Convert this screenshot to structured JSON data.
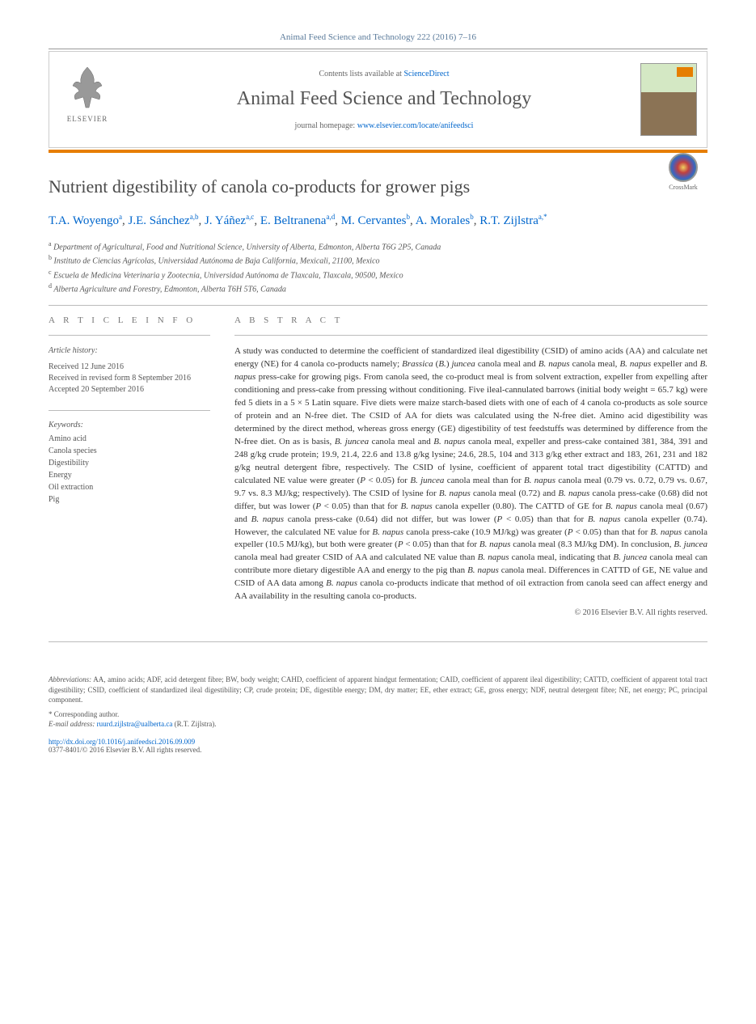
{
  "journal_ref": "Animal Feed Science and Technology 222 (2016) 7–16",
  "header": {
    "contents_prefix": "Contents lists available at ",
    "contents_link": "ScienceDirect",
    "journal_title": "Animal Feed Science and Technology",
    "homepage_prefix": "journal homepage: ",
    "homepage_link": "www.elsevier.com/locate/anifeedsci",
    "elsevier_label": "ELSEVIER"
  },
  "crossmark_label": "CrossMark",
  "title": "Nutrient digestibility of canola co-products for grower pigs",
  "authors_html": "T.A. Woyengo<sup>a</sup>, J.E. Sánchez<sup>a,b</sup>, J. Yáñez<sup>a,c</sup>, E. Beltranena<sup>a,d</sup>, M. Cervantes<sup>b</sup>, A. Morales<sup>b</sup>, R.T. Zijlstra<sup>a,*</sup>",
  "affiliations": [
    {
      "sup": "a",
      "text": "Department of Agricultural, Food and Nutritional Science, University of Alberta, Edmonton, Alberta T6G 2P5, Canada"
    },
    {
      "sup": "b",
      "text": "Instituto de Ciencias Agrícolas, Universidad Autónoma de Baja California, Mexicali, 21100, Mexico"
    },
    {
      "sup": "c",
      "text": "Escuela de Medicina Veterinaria y Zootecnia, Universidad Autónoma de Tlaxcala, Tlaxcala, 90500, Mexico"
    },
    {
      "sup": "d",
      "text": "Alberta Agriculture and Forestry, Edmonton, Alberta T6H 5T6, Canada"
    }
  ],
  "info_header": "A R T I C L E    I N F O",
  "abstract_header": "A B S T R A C T",
  "history_label": "Article history:",
  "history": {
    "received": "Received 12 June 2016",
    "revised": "Received in revised form 8 September 2016",
    "accepted": "Accepted 20 September 2016"
  },
  "keywords_label": "Keywords:",
  "keywords": [
    "Amino acid",
    "Canola species",
    "Digestibility",
    "Energy",
    "Oil extraction",
    "Pig"
  ],
  "abstract": "A study was conducted to determine the coefficient of standardized ileal digestibility (CSID) of amino acids (AA) and calculate net energy (NE) for 4 canola co-products namely; Brassica (B.) juncea canola meal and B. napus canola meal, B. napus expeller and B. napus press-cake for growing pigs. From canola seed, the co-product meal is from solvent extraction, expeller from expelling after conditioning and press-cake from pressing without conditioning. Five ileal-cannulated barrows (initial body weight = 65.7 kg) were fed 5 diets in a 5 × 5 Latin square. Five diets were maize starch-based diets with one of each of 4 canola co-products as sole source of protein and an N-free diet. The CSID of AA for diets was calculated using the N-free diet. Amino acid digestibility was determined by the direct method, whereas gross energy (GE) digestibility of test feedstuffs was determined by difference from the N-free diet. On as is basis, B. juncea canola meal and B. napus canola meal, expeller and press-cake contained 381, 384, 391 and 248 g/kg crude protein; 19.9, 21.4, 22.6 and 13.8 g/kg lysine; 24.6, 28.5, 104 and 313 g/kg ether extract and 183, 261, 231 and 182 g/kg neutral detergent fibre, respectively. The CSID of lysine, coefficient of apparent total tract digestibility (CATTD) and calculated NE value were greater (P < 0.05) for B. juncea canola meal than for B. napus canola meal (0.79 vs. 0.72, 0.79 vs. 0.67, 9.7 vs. 8.3 MJ/kg; respectively). The CSID of lysine for B. napus canola meal (0.72) and B. napus canola press-cake (0.68) did not differ, but was lower (P < 0.05) than that for B. napus canola expeller (0.80). The CATTD of GE for B. napus canola meal (0.67) and B. napus canola press-cake (0.64) did not differ, but was lower (P < 0.05) than that for B. napus canola expeller (0.74). However, the calculated NE value for B. napus canola press-cake (10.9 MJ/kg) was greater (P < 0.05) than that for B. napus canola expeller (10.5 MJ/kg), but both were greater (P < 0.05) than that for B. napus canola meal (8.3 MJ/kg DM). In conclusion, B. juncea canola meal had greater CSID of AA and calculated NE value than B. napus canola meal, indicating that B. juncea canola meal can contribute more dietary digestible AA and energy to the pig than B. napus canola meal. Differences in CATTD of GE, NE value and CSID of AA data among B. napus canola co-products indicate that method of oil extraction from canola seed can affect energy and AA availability in the resulting canola co-products.",
  "abstract_copyright": "© 2016 Elsevier B.V. All rights reserved.",
  "abbrev_label": "Abbreviations:",
  "abbrev_text": "AA, amino acids; ADF, acid detergent fibre; BW, body weight; CAHD, coefficient of apparent hindgut fermentation; CAID, coefficient of apparent ileal digestibility; CATTD, coefficient of apparent total tract digestibility; CSID, coefficient of standardized ileal digestibility; CP, crude protein; DE, digestible energy; DM, dry matter; EE, ether extract; GE, gross energy; NDF, neutral detergent fibre; NE, net energy; PC, principal component.",
  "corr_label": "* Corresponding author.",
  "email_label": "E-mail address:",
  "email_addr": "ruurd.zijlstra@ualberta.ca",
  "email_name": "(R.T. Zijlstra).",
  "doi": "http://dx.doi.org/10.1016/j.anifeedsci.2016.09.009",
  "issn_copy": "0377-8401/© 2016 Elsevier B.V. All rights reserved.",
  "colors": {
    "link": "#0066cc",
    "orange": "#e67e00",
    "text": "#333333",
    "muted": "#555555"
  }
}
